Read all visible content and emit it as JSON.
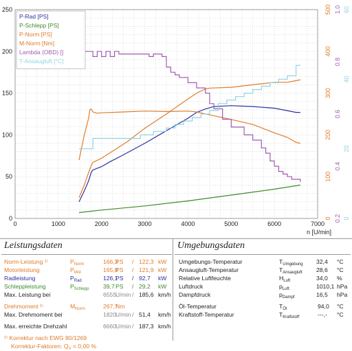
{
  "chart_data": {
    "type": "line",
    "xlabel": "n [U/min]",
    "xlim": [
      0,
      7000
    ],
    "x_ticks": [
      "0",
      "1000",
      "2000",
      "3000",
      "4000",
      "5000",
      "6000",
      "7000"
    ],
    "left_axis": {
      "ylim": [
        0,
        250
      ],
      "ticks": [
        "0",
        "50",
        "100",
        "150",
        "200",
        "250"
      ]
    },
    "right_axis_nm": {
      "ylim": [
        0,
        500
      ],
      "ticks": [
        "0",
        "100",
        "200",
        "300",
        "400",
        "500"
      ],
      "color": "#e07b2a"
    },
    "right_axis_lambda": {
      "ylim": [
        0.2,
        1.0
      ],
      "ticks": [
        "0.2",
        "0.4",
        "0.6",
        "0.8",
        "1.0"
      ],
      "color": "#a05cb0"
    },
    "right_axis_temp": {
      "ylim": [
        0,
        60
      ],
      "ticks": [
        "0",
        "20",
        "40",
        "60"
      ],
      "color": "#8fd3e0"
    },
    "legend": [
      "P-Rad [PS]",
      "P-Schlepp [PS]",
      "P-Norm [PS]",
      "M-Norm [Nm]",
      "Lambda (OBD) []",
      "T-Ansaugluft [°C]"
    ],
    "legend_colors": [
      "#2b2fa0",
      "#3d8a2a",
      "#e07b2a",
      "#e07b2a",
      "#a05cb0",
      "#8fd3e0"
    ],
    "series": [
      {
        "name": "P-Rad [PS]",
        "axis": "left",
        "color": "#2b2fa0",
        "x": [
          1480,
          1600,
          1700,
          1760,
          1800,
          2000,
          2200,
          2500,
          3000,
          3500,
          4000,
          4200,
          4400,
          4600,
          5000,
          5500,
          6000,
          6300,
          6500,
          6600
        ],
        "y": [
          20,
          33,
          45,
          55,
          58,
          62,
          68,
          76,
          90,
          105,
          120,
          127,
          131,
          134,
          135,
          134,
          132,
          129,
          127,
          127
        ]
      },
      {
        "name": "P-Schlepp [PS]",
        "axis": "left",
        "color": "#3d8a2a",
        "x": [
          1480,
          2000,
          3000,
          4000,
          5000,
          6000,
          6600
        ],
        "y": [
          7,
          10,
          15,
          21,
          28,
          35,
          40
        ]
      },
      {
        "name": "P-Norm [PS]",
        "axis": "left",
        "color": "#e07b2a",
        "x": [
          1480,
          1600,
          1700,
          1760,
          1800,
          2000,
          2300,
          2600,
          3000,
          3500,
          4000,
          4200,
          4400,
          4500,
          5000,
          5500,
          6000,
          6300,
          6500,
          6600
        ],
        "y": [
          25,
          40,
          55,
          63,
          67,
          72,
          82,
          92,
          108,
          125,
          143,
          150,
          155,
          156,
          157,
          160,
          163,
          163,
          165,
          166
        ]
      },
      {
        "name": "M-Norm [Nm]",
        "axis": "nm",
        "color": "#e07b2a",
        "x": [
          1480,
          1600,
          1700,
          1730,
          1760,
          1800,
          1900,
          2000,
          2500,
          3000,
          3500,
          4000,
          4200,
          4500,
          5000,
          5500,
          6000,
          6300,
          6500,
          6600
        ],
        "y": [
          140,
          200,
          240,
          260,
          262,
          255,
          252,
          253,
          255,
          257,
          256,
          257,
          255,
          248,
          237,
          225,
          205,
          194,
          182,
          180
        ]
      },
      {
        "name": "Lambda (OBD) []",
        "axis": "lambda",
        "color": "#a05cb0",
        "step": true,
        "x": [
          1480,
          1700,
          1800,
          1900,
          2000,
          2100,
          2200,
          2300,
          2400,
          3000,
          3100,
          3200,
          3400,
          3500,
          3600,
          3700,
          3800,
          4000,
          4200,
          4400,
          4500,
          4600,
          4800,
          5000,
          5300,
          5500,
          5700,
          5800,
          5900,
          6000,
          6100,
          6200,
          6300,
          6400,
          6600
        ],
        "y": [
          0.84,
          0.84,
          0.82,
          0.84,
          0.82,
          0.84,
          0.82,
          0.84,
          0.83,
          0.83,
          0.82,
          0.83,
          0.82,
          0.78,
          0.76,
          0.75,
          0.74,
          0.72,
          0.7,
          0.68,
          0.64,
          0.62,
          0.58,
          0.55,
          0.52,
          0.5,
          0.47,
          0.45,
          0.42,
          0.4,
          0.38,
          0.37,
          0.36,
          0.35,
          0.34
        ]
      },
      {
        "name": "T-Ansaugluft [°C]",
        "axis": "temp",
        "color": "#8fd3e0",
        "step": true,
        "x": [
          1480,
          1800,
          2500,
          2900,
          3200,
          3500,
          3700,
          3900,
          4100,
          4300,
          4500,
          4700,
          4900,
          5100,
          5300,
          5500,
          5700,
          5900,
          6100,
          6300,
          6500,
          6600
        ],
        "y": [
          20,
          23,
          23,
          24,
          25,
          26,
          27,
          28,
          29,
          30,
          31,
          33,
          34,
          35,
          36,
          37,
          38,
          39,
          40,
          41,
          44,
          44
        ]
      }
    ]
  },
  "leistung": {
    "title": "Leistungsdaten",
    "rows": [
      {
        "label": "Norm-Leistung ¹⁾",
        "sym": "P",
        "sub": "Norm",
        "v1": "166,3",
        "u1": "PS",
        "sep": "/",
        "v2": "122,3",
        "u2": "kW"
      },
      {
        "label": "Motorleistung",
        "sym": "P",
        "sub": "Mot",
        "v1": "165,8",
        "u1": "PS",
        "sep": "/",
        "v2": "121,9",
        "u2": "kW"
      },
      {
        "label": "Radleistung",
        "sym": "P",
        "sub": "Rad",
        "v1": "126,1",
        "u1": "PS",
        "sep": "/",
        "v2": "92,7",
        "u2": "kW"
      },
      {
        "label": "Schleppleistung",
        "sym": "P",
        "sub": "Schlepp",
        "v1": "39,7",
        "u1": "PS",
        "sep": "/",
        "v2": "29,2",
        "u2": "kW"
      },
      {
        "label": "Max. Leistung bei",
        "v1": "6555",
        "u1": "U/min",
        "sep": "/",
        "v2": "185,6",
        "u2": "km/h"
      }
    ],
    "rows2": [
      {
        "label": "Drehmoment ¹⁾",
        "sym": "M",
        "sub": "Norm",
        "v1": "267,7",
        "u1": "Nm"
      },
      {
        "label": "Max. Drehmoment bei",
        "v1": "1820",
        "u1": "U/min",
        "sep": "/",
        "v2": "51,4",
        "u2": "km/h"
      }
    ],
    "rows3": [
      {
        "label": "Max. erreichte Drehzahl",
        "v1": "6660",
        "u1": "U/min",
        "sep": "/",
        "v2": "187,3",
        "u2": "km/h"
      }
    ],
    "footnote1": "¹⁾ Korrektur nach EWG 80/1269",
    "footnote2_label": "Korrektur-Faktoren: Q",
    "footnote2_sub": "V",
    "footnote2_val": "=   0,00 %"
  },
  "umgebung": {
    "title": "Umgebungsdaten",
    "rows": [
      {
        "label": "Umgebungs-Temperatur",
        "sym": "T",
        "sub": "Umgebung",
        "val": "32,4",
        "unit": "°C"
      },
      {
        "label": "Ansaugluft-Temperatur",
        "sym": "T",
        "sub": "Ansaugluft",
        "val": "28,6",
        "unit": "°C"
      },
      {
        "label": "Relative Luftfeuchte",
        "sym": "H",
        "sub": "Luft",
        "val": "34,0",
        "unit": "%"
      },
      {
        "label": "Luftdruck",
        "sym": "p",
        "sub": "Luft",
        "val": "1010,1",
        "unit": "hPa"
      },
      {
        "label": "Dampfdruck",
        "sym": "p",
        "sub": "Dampf",
        "val": "16,5",
        "unit": "hPa"
      }
    ],
    "rows2": [
      {
        "label": "Öl-Temperatur",
        "sym": "T",
        "sub": "Öl",
        "val": "94,0",
        "unit": "°C"
      },
      {
        "label": "Kraftstoff-Temperatur",
        "sym": "T",
        "sub": "Kraftstoff",
        "val": "---,-",
        "unit": "°C"
      }
    ]
  }
}
